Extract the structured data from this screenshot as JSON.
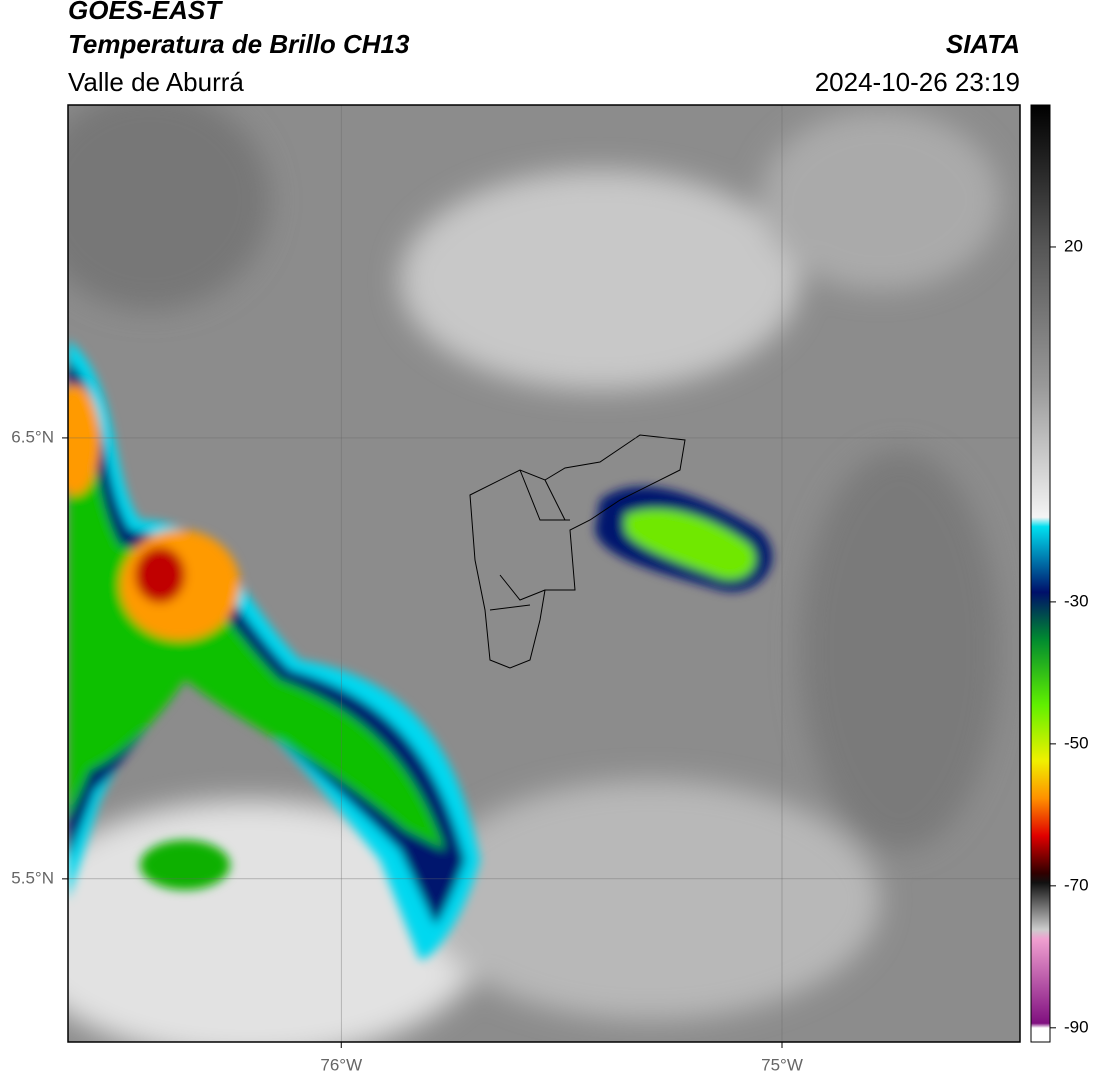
{
  "header": {
    "title": "GOES-EAST",
    "subtitle": "Temperatura de Brillo CH13",
    "region": "Valle de Aburrá",
    "source": "SIATA",
    "timestamp": "2024-10-26 23:19"
  },
  "map": {
    "xlim": [
      -76.62,
      -74.46
    ],
    "ylim": [
      5.13,
      7.255
    ],
    "xticks": [
      {
        "value": -76,
        "label": "76°W"
      },
      {
        "value": -75,
        "label": "75°W"
      }
    ],
    "yticks": [
      {
        "value": 6.5,
        "label": "6.5°N"
      },
      {
        "value": 5.5,
        "label": "5.5°N"
      }
    ],
    "grid": true
  },
  "colorbar": {
    "lim": [
      -92,
      40
    ],
    "ticks": [
      20,
      -30,
      -50,
      -70,
      -90
    ]
  }
}
